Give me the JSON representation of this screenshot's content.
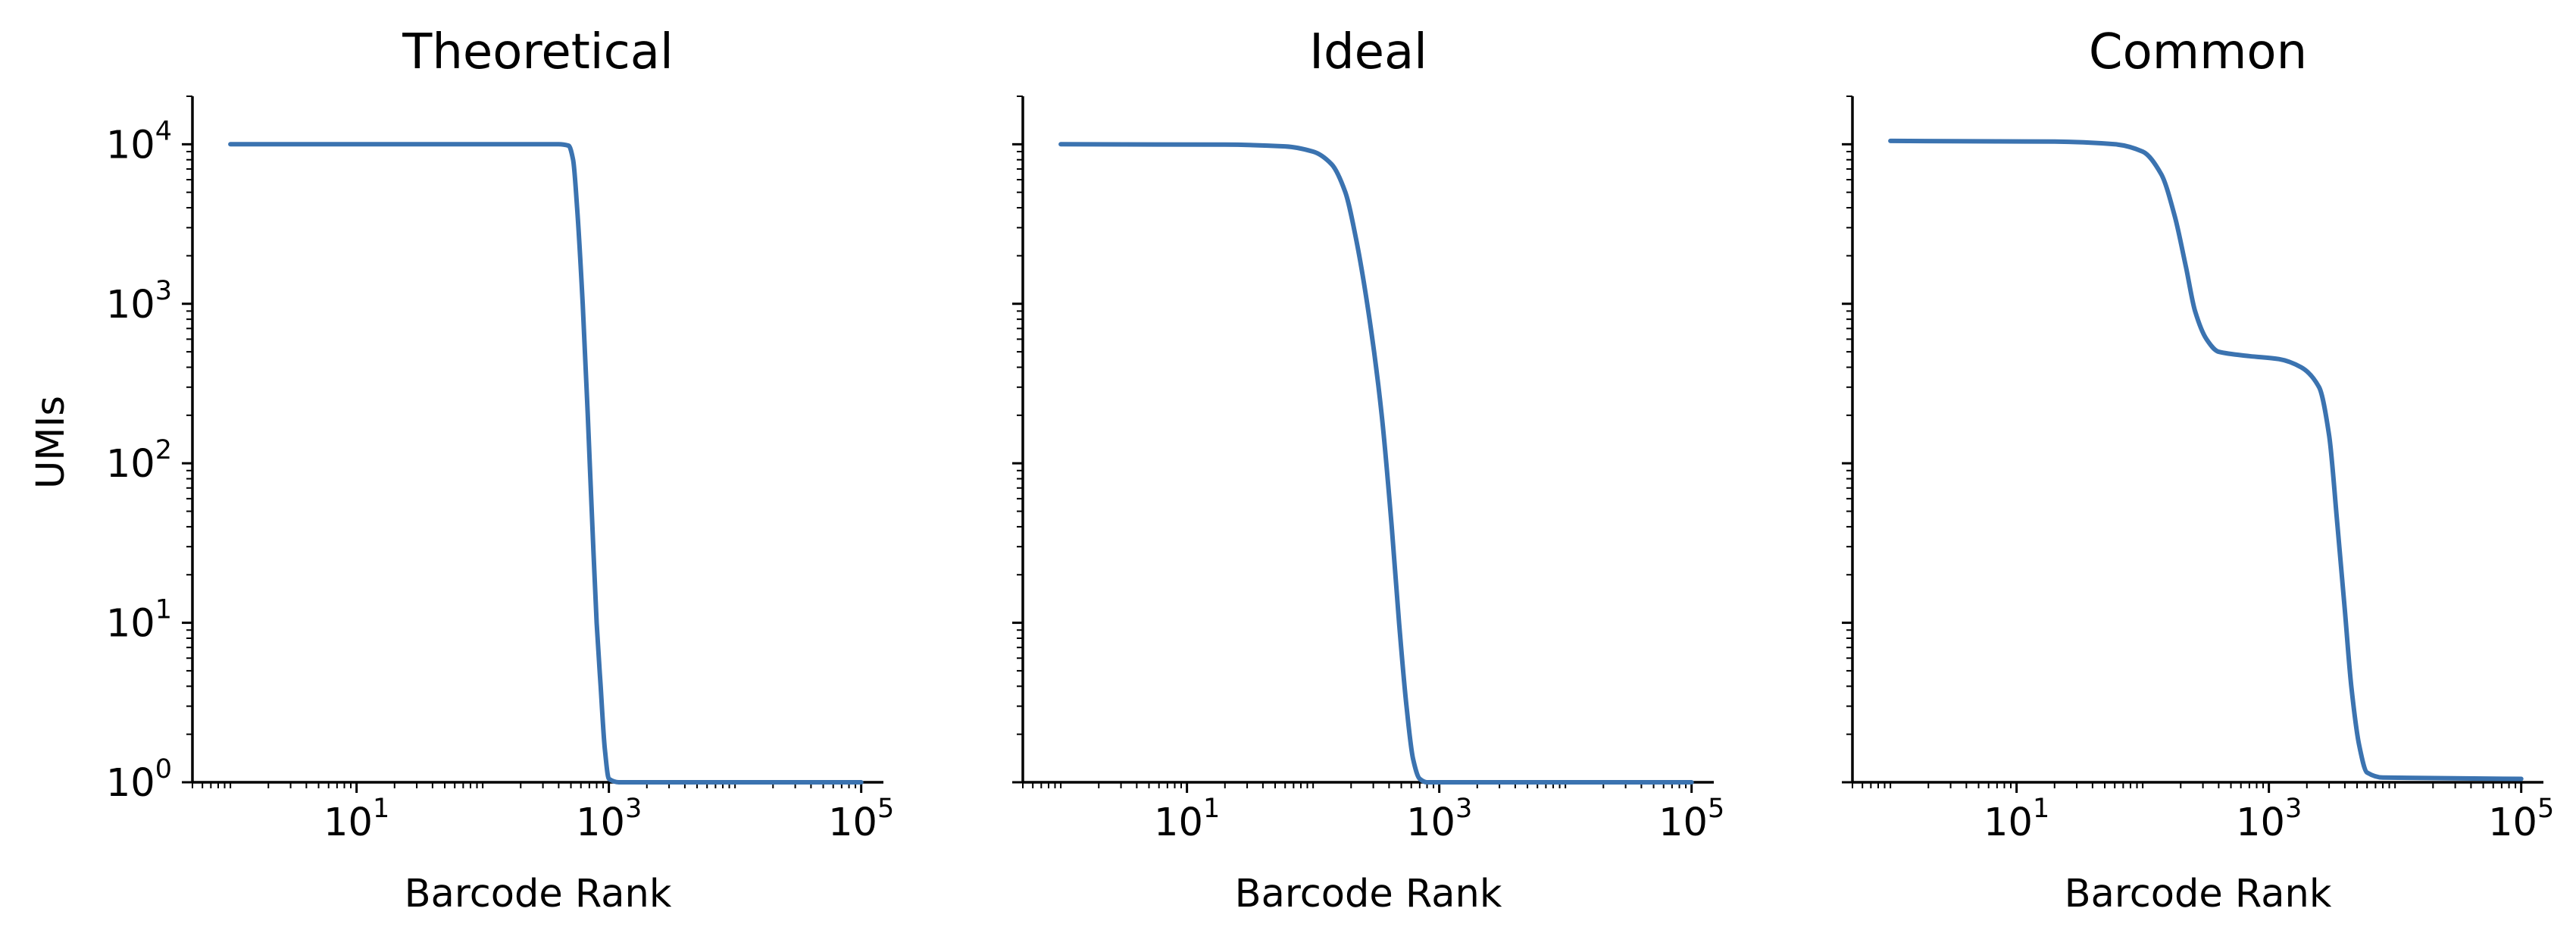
{
  "chart_data": [
    {
      "type": "line",
      "title": "Theoretical",
      "xlabel": "Barcode Rank",
      "ylabel": "UMIs",
      "xscale": "log",
      "yscale": "log",
      "xlim": [
        0.5,
        150000
      ],
      "ylim": [
        1,
        20000
      ],
      "xticks": [
        {
          "value": 10,
          "base": "10",
          "exp": "1"
        },
        {
          "value": 1000,
          "base": "10",
          "exp": "3"
        },
        {
          "value": 100000,
          "base": "10",
          "exp": "5"
        }
      ],
      "yticks": [
        {
          "value": 1,
          "base": "10",
          "exp": "0"
        },
        {
          "value": 10,
          "base": "10",
          "exp": "1"
        },
        {
          "value": 100,
          "base": "10",
          "exp": "2"
        },
        {
          "value": 1000,
          "base": "10",
          "exp": "3"
        },
        {
          "value": 10000,
          "base": "10",
          "exp": "4"
        }
      ],
      "grid": false,
      "series": [
        {
          "color": "#3b73b0",
          "points": [
            [
              1,
              10000
            ],
            [
              100,
              10000
            ],
            [
              400,
              10000
            ],
            [
              480,
              9800
            ],
            [
              520,
              8000
            ],
            [
              560,
              4000
            ],
            [
              620,
              1000
            ],
            [
              680,
              200
            ],
            [
              740,
              40
            ],
            [
              800,
              10
            ],
            [
              860,
              4
            ],
            [
              930,
              1.6
            ],
            [
              1000,
              1.05
            ],
            [
              1200,
              1
            ],
            [
              10000,
              1
            ],
            [
              100000,
              1
            ]
          ]
        }
      ]
    },
    {
      "type": "line",
      "title": "Ideal",
      "xlabel": "Barcode Rank",
      "ylabel": "",
      "xscale": "log",
      "yscale": "log",
      "xlim": [
        0.5,
        150000
      ],
      "ylim": [
        1,
        20000
      ],
      "xticks": [
        {
          "value": 10,
          "base": "10",
          "exp": "1"
        },
        {
          "value": 1000,
          "base": "10",
          "exp": "3"
        },
        {
          "value": 100000,
          "base": "10",
          "exp": "5"
        }
      ],
      "yticks": [
        {
          "value": 1,
          "base": "10",
          "exp": ""
        },
        {
          "value": 10,
          "base": "10",
          "exp": ""
        },
        {
          "value": 100,
          "base": "10",
          "exp": ""
        },
        {
          "value": 1000,
          "base": "10",
          "exp": ""
        },
        {
          "value": 10000,
          "base": "10",
          "exp": ""
        }
      ],
      "grid": false,
      "series": [
        {
          "color": "#3b73b0",
          "points": [
            [
              1,
              10000
            ],
            [
              20,
              9950
            ],
            [
              60,
              9700
            ],
            [
              100,
              9000
            ],
            [
              140,
              7500
            ],
            [
              180,
              5000
            ],
            [
              220,
              2500
            ],
            [
              280,
              800
            ],
            [
              350,
              200
            ],
            [
              420,
              40
            ],
            [
              480,
              10
            ],
            [
              550,
              3
            ],
            [
              620,
              1.4
            ],
            [
              700,
              1.05
            ],
            [
              800,
              1
            ],
            [
              10000,
              1
            ],
            [
              100000,
              1
            ]
          ]
        }
      ]
    },
    {
      "type": "line",
      "title": "Common",
      "xlabel": "Barcode Rank",
      "ylabel": "",
      "xscale": "log",
      "yscale": "log",
      "xlim": [
        0.5,
        150000
      ],
      "ylim": [
        1,
        20000
      ],
      "xticks": [
        {
          "value": 10,
          "base": "10",
          "exp": "1"
        },
        {
          "value": 1000,
          "base": "10",
          "exp": "3"
        },
        {
          "value": 100000,
          "base": "10",
          "exp": "5"
        }
      ],
      "yticks": [
        {
          "value": 1,
          "base": "10",
          "exp": ""
        },
        {
          "value": 10,
          "base": "10",
          "exp": ""
        },
        {
          "value": 100,
          "base": "10",
          "exp": ""
        },
        {
          "value": 1000,
          "base": "10",
          "exp": ""
        },
        {
          "value": 10000,
          "base": "10",
          "exp": ""
        }
      ],
      "grid": false,
      "series": [
        {
          "color": "#3b73b0",
          "points": [
            [
              1,
              10500
            ],
            [
              20,
              10400
            ],
            [
              60,
              10000
            ],
            [
              100,
              9000
            ],
            [
              140,
              6500
            ],
            [
              180,
              3500
            ],
            [
              220,
              1700
            ],
            [
              260,
              900
            ],
            [
              320,
              600
            ],
            [
              400,
              500
            ],
            [
              700,
              470
            ],
            [
              1200,
              450
            ],
            [
              1800,
              400
            ],
            [
              2500,
              300
            ],
            [
              3000,
              150
            ],
            [
              3500,
              40
            ],
            [
              4000,
              12
            ],
            [
              4500,
              4
            ],
            [
              5200,
              1.7
            ],
            [
              6000,
              1.15
            ],
            [
              8000,
              1.07
            ],
            [
              100000,
              1.05
            ]
          ]
        }
      ]
    }
  ]
}
